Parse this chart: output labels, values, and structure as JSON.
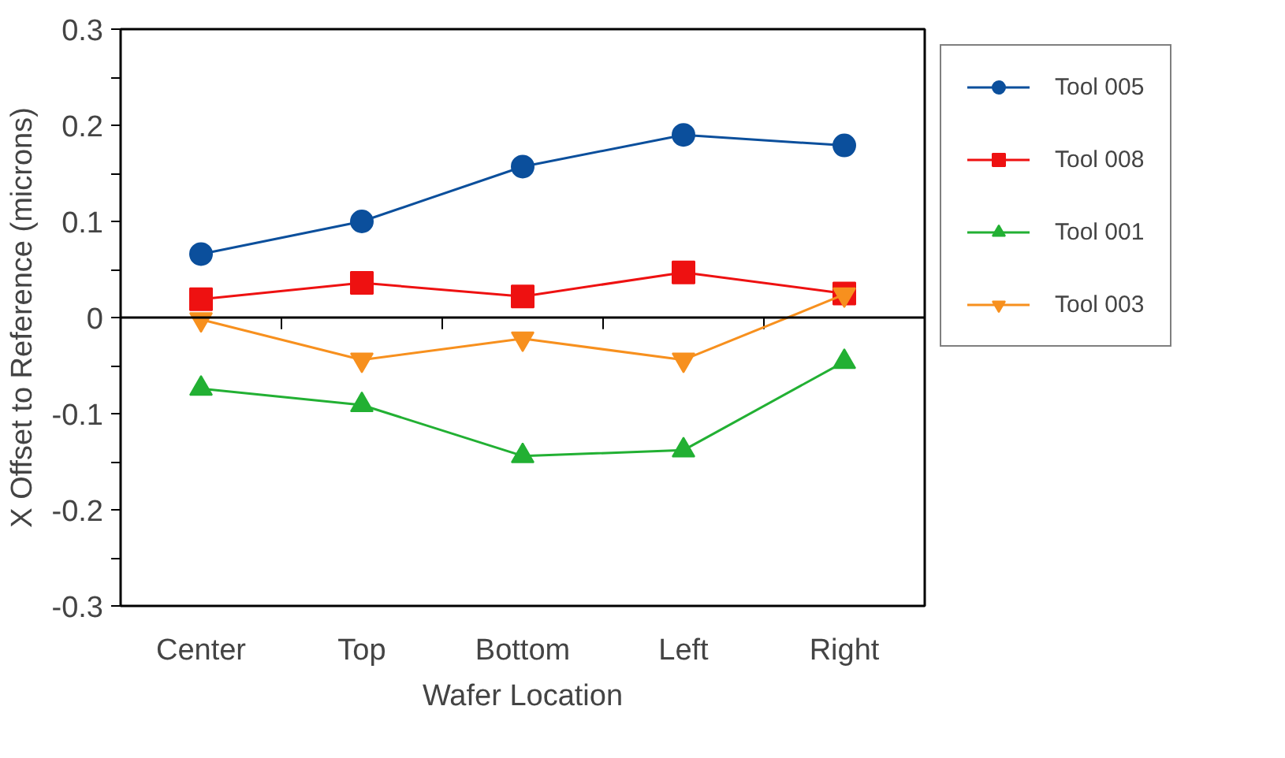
{
  "chart_data": {
    "type": "line",
    "xlabel": "Wafer Location",
    "ylabel": "X Offset to Reference (microns)",
    "categories": [
      "Center",
      "Top",
      "Bottom",
      "Left",
      "Right"
    ],
    "series": [
      {
        "name": "Tool 005",
        "color": "#0b4f9c",
        "marker": "circle",
        "values": [
          0.066,
          0.1,
          0.157,
          0.19,
          0.179
        ]
      },
      {
        "name": "Tool 008",
        "color": "#ee1111",
        "marker": "square",
        "values": [
          0.019,
          0.036,
          0.022,
          0.047,
          0.025
        ]
      },
      {
        "name": "Tool 001",
        "color": "#22b033",
        "marker": "triangle",
        "values": [
          -0.074,
          -0.091,
          -0.144,
          -0.138,
          -0.046
        ]
      },
      {
        "name": "Tool 003",
        "color": "#f7901e",
        "marker": "triangle",
        "values": [
          -0.002,
          -0.044,
          -0.022,
          -0.044,
          0.024
        ]
      }
    ],
    "ylim": [
      -0.3,
      0.3
    ],
    "yticks": [
      -0.3,
      {
        "value": -0.25,
        "label": null
      },
      -0.2,
      {
        "value": -0.15,
        "label": null
      },
      -0.1,
      {
        "value": -0.05,
        "label": null
      },
      0,
      {
        "value": 0.05,
        "label": null
      },
      0.1,
      {
        "value": 0.15,
        "label": null
      },
      0.2,
      {
        "value": 0.25,
        "label": null
      },
      0.3
    ],
    "ref_lines": [
      {
        "axis": "y",
        "value": 0,
        "color": "#000000"
      }
    ],
    "grid": false,
    "legend": "right"
  }
}
